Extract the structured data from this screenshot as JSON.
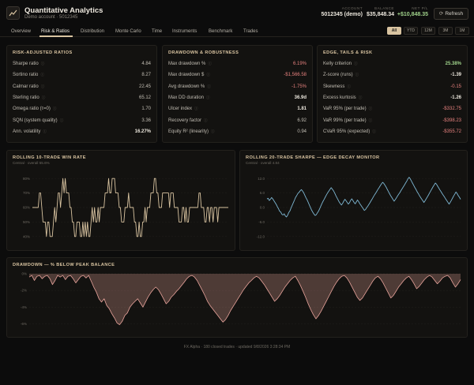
{
  "app": {
    "title": "Quantitative Analytics",
    "subtitle": "Demo account · 5012345"
  },
  "stats": [
    {
      "label": "ACCOUNT",
      "value": "5012345 (demo)",
      "tone": "plain"
    },
    {
      "label": "BALANCE",
      "value": "$35,848.34",
      "tone": "plain"
    },
    {
      "label": "NET P/L",
      "value": "+$10,848.35",
      "tone": "pos"
    }
  ],
  "refresh_label": "Refresh",
  "tabs": [
    "Overview",
    "Risk & Ratios",
    "Distribution",
    "Monte Carlo",
    "Time",
    "Instruments",
    "Benchmark",
    "Trades"
  ],
  "ranges": [
    "All",
    "YTD",
    "12M",
    "3M",
    "1M"
  ],
  "colors": {
    "accent": "#d9c4a1",
    "positive": "#9fd18a",
    "negative": "#e6817e",
    "sharpe_line": "#7fb8d4",
    "drawdown": "#e9a49c"
  },
  "panels": {
    "risk": {
      "title": "RISK-ADJUSTED RATIOS",
      "rows": [
        {
          "label": "Sharpe ratio",
          "value": "4.84",
          "tone": "plain"
        },
        {
          "label": "Sortino ratio",
          "value": "8.27",
          "tone": "plain"
        },
        {
          "label": "Calmar ratio",
          "value": "22.45",
          "tone": "plain"
        },
        {
          "label": "Sterling ratio",
          "value": "65.12",
          "tone": "plain"
        },
        {
          "label": "Omega ratio (τ=0)",
          "value": "1.70",
          "tone": "plain"
        },
        {
          "label": "SQN (system quality)",
          "value": "3.36",
          "tone": "plain"
        },
        {
          "label": "Ann. volatility",
          "value": "16.27%",
          "tone": "bold"
        }
      ]
    },
    "drawdown": {
      "title": "DRAWDOWN & ROBUSTNESS",
      "rows": [
        {
          "label": "Max drawdown %",
          "value": "6.19%",
          "tone": "neg"
        },
        {
          "label": "Max drawdown $",
          "value": "-$1,566.58",
          "tone": "neg"
        },
        {
          "label": "Avg drawdown %",
          "value": "-1.75%",
          "tone": "neg"
        },
        {
          "label": "Max DD duration",
          "value": "36.9d",
          "tone": "bold"
        },
        {
          "label": "Ulcer index",
          "value": "1.81",
          "tone": "bold"
        },
        {
          "label": "Recovery factor",
          "value": "6.92",
          "tone": "plain"
        },
        {
          "label": "Equity R² (linearity)",
          "value": "0.94",
          "tone": "plain"
        }
      ]
    },
    "edge": {
      "title": "EDGE, TAILS & RISK",
      "rows": [
        {
          "label": "Kelly criterion",
          "value": "25.38%",
          "tone": "pos"
        },
        {
          "label": "Z-score (runs)",
          "value": "-1.39",
          "tone": "bold"
        },
        {
          "label": "Skewness",
          "value": "-0.15",
          "tone": "neg"
        },
        {
          "label": "Excess kurtosis",
          "value": "-1.26",
          "tone": "bold"
        },
        {
          "label": "VaR 95% (per trade)",
          "value": "-$332.75",
          "tone": "neg"
        },
        {
          "label": "VaR 99% (per trade)",
          "value": "-$398.23",
          "tone": "neg"
        },
        {
          "label": "CVaR 95% (expected)",
          "value": "-$355.72",
          "tone": "neg"
        }
      ]
    }
  },
  "charts": {
    "winrate": {
      "title": "ROLLING 10-TRADE WIN RATE",
      "subtitle": "Central · overall 55.6%"
    },
    "sharpe": {
      "title": "ROLLING 20-TRADE SHARPE — EDGE DECAY MONITOR",
      "subtitle": "Central · overall 4.84"
    },
    "dd": {
      "title": "DRAWDOWN — % BELOW PEAK BALANCE"
    }
  },
  "chart_data": [
    {
      "type": "line",
      "name": "rolling-win-rate",
      "yticks": [
        "80%",
        "70%",
        "60%",
        "50%",
        "40%"
      ],
      "ylim": [
        35,
        85
      ],
      "values": [
        60,
        60,
        60,
        60,
        60,
        60,
        70,
        70,
        60,
        50,
        50,
        50,
        40,
        50,
        50,
        40,
        40,
        40,
        50,
        60,
        50,
        60,
        70,
        70,
        60,
        70,
        80,
        70,
        80,
        70,
        70,
        70,
        60,
        60,
        50,
        50,
        40,
        40,
        50,
        50,
        50,
        40,
        40,
        50,
        40,
        50,
        40,
        50,
        40,
        40,
        50,
        60,
        50,
        60,
        50,
        50,
        60,
        50,
        60,
        60,
        60,
        60,
        70,
        70,
        70,
        80,
        70,
        70,
        80,
        80,
        80,
        70,
        70,
        70,
        60,
        60,
        50,
        50,
        50,
        60,
        60,
        60,
        70,
        60,
        60,
        60,
        60,
        50,
        50,
        40,
        40,
        50,
        40,
        40,
        50,
        50,
        60,
        50,
        60,
        60,
        60,
        70,
        70,
        70,
        80,
        80,
        70,
        70,
        60,
        60,
        60,
        70,
        70,
        70,
        70,
        70,
        70,
        60,
        70,
        70,
        70,
        60,
        60,
        60,
        60,
        50,
        50,
        50,
        60,
        60,
        50,
        60,
        50,
        50,
        60,
        60,
        60,
        60,
        60,
        60,
        60,
        60,
        70,
        70,
        60,
        60,
        60,
        50,
        50,
        60,
        60,
        50,
        60,
        60,
        50,
        60,
        60,
        60,
        50,
        60,
        60,
        60,
        60,
        60,
        60,
        60,
        60,
        60
      ]
    },
    {
      "type": "line",
      "name": "rolling-sharpe",
      "yticks": [
        "12.0",
        "6.0",
        "0.0",
        "-6.0",
        "-12.0"
      ],
      "ylim": [
        -15,
        15
      ],
      "values": [
        3.5,
        3.8,
        2.9,
        3.4,
        4.1,
        3.6,
        2.8,
        2.1,
        1.3,
        0.4,
        -0.5,
        -1.5,
        -1.9,
        -2.8,
        -3.1,
        -2.6,
        -3.5,
        -3.9,
        -3.2,
        -2.1,
        -1.4,
        -0.2,
        0.9,
        2.0,
        3.1,
        4.2,
        5.0,
        5.8,
        6.3,
        6.9,
        7.4,
        6.8,
        6.1,
        5.1,
        4.0,
        3.2,
        2.1,
        1.0,
        -0.1,
        -1.1,
        -2.0,
        -2.7,
        -3.3,
        -3.0,
        -2.2,
        -1.5,
        -0.5,
        0.6,
        1.7,
        2.6,
        3.5,
        4.4,
        5.3,
        6.1,
        6.8,
        7.5,
        8.2,
        7.6,
        6.9,
        6.1,
        5.0,
        4.1,
        3.2,
        2.3,
        1.6,
        1.0,
        1.7,
        2.6,
        3.4,
        2.8,
        2.1,
        1.4,
        2.0,
        2.9,
        3.6,
        2.9,
        2.1,
        1.5,
        2.3,
        3.1,
        2.4,
        1.6,
        0.9,
        0.2,
        -0.5,
        -1.2,
        -0.8,
        -0.1,
        0.6,
        1.3,
        2.1,
        2.9,
        3.7,
        4.5,
        5.3,
        6.0,
        6.8,
        7.6,
        8.3,
        9.1,
        9.8,
        10.4,
        9.9,
        9.2,
        8.4,
        7.5,
        6.6,
        5.7,
        4.8,
        4.1,
        3.3,
        2.6,
        3.3,
        4.0,
        4.8,
        5.5,
        6.2,
        7.0,
        7.8,
        8.5,
        9.3,
        10.1,
        10.9,
        11.8,
        12.5,
        11.9,
        11.0,
        10.1,
        9.2,
        8.3,
        7.5,
        6.6,
        5.8,
        5.0,
        4.2,
        3.5,
        2.8,
        2.1,
        2.8,
        3.6,
        4.4,
        5.2,
        6.1,
        6.9,
        7.8,
        8.6,
        9.4,
        10.1,
        9.6,
        8.8,
        8.0,
        7.2,
        6.5,
        5.7,
        5.0,
        4.3,
        3.5,
        2.8,
        2.1,
        1.4,
        2.2,
        3.0,
        3.9,
        4.8,
        5.6,
        6.4,
        5.7,
        4.9,
        4.2,
        3.4
      ]
    },
    {
      "type": "area",
      "name": "drawdown",
      "yticks": [
        "0%",
        "-2%",
        "-4%",
        "-6%"
      ],
      "ylim": [
        -7,
        0
      ],
      "values": [
        -0.4,
        -0.2,
        -0.8,
        -0.3,
        -0.2,
        -0.6,
        -0.3,
        -0.2,
        -0.6,
        -1.3,
        -0.8,
        -0.2,
        -0.4,
        -0.2,
        -0.7,
        -0.3,
        -0.2,
        -0.6,
        -1.1,
        -0.7,
        -0.3,
        -0.2,
        -0.5,
        -0.2,
        -0.9,
        -1.6,
        -2.2,
        -3.0,
        -3.4,
        -3.0,
        -3.8,
        -4.2,
        -4.8,
        -5.3,
        -5.9,
        -6.1,
        -5.7,
        -5.0,
        -4.7,
        -4.0,
        -3.6,
        -3.3,
        -3.0,
        -3.5,
        -4.0,
        -3.4,
        -2.8,
        -2.3,
        -1.9,
        -1.6,
        -1.9,
        -2.4,
        -3.0,
        -3.6,
        -3.3,
        -2.8,
        -2.5,
        -2.1,
        -1.8,
        -1.4,
        -1.0,
        -0.6,
        -0.3,
        -0.2,
        -0.4,
        -0.8,
        -1.4,
        -2.0,
        -2.6,
        -3.3,
        -3.8,
        -4.2,
        -4.6,
        -5.0,
        -5.4,
        -5.8,
        -5.5,
        -5.0,
        -4.4,
        -3.9,
        -3.4,
        -2.9,
        -2.4,
        -1.9,
        -1.5,
        -1.1,
        -0.8,
        -0.5,
        -0.3,
        -0.5,
        -0.9,
        -1.3,
        -1.8,
        -2.3,
        -2.8,
        -3.3,
        -3.0,
        -2.6,
        -2.1,
        -1.6,
        -1.2,
        -0.8,
        -0.5,
        -0.3,
        -0.8,
        -1.4,
        -2.1,
        -2.8,
        -3.6,
        -4.3,
        -4.9,
        -5.4,
        -5.0,
        -4.5,
        -3.9,
        -3.3,
        -2.7,
        -2.1,
        -1.5,
        -1.0,
        -0.6,
        -0.3,
        -0.2,
        -0.5,
        -1.0,
        -1.6,
        -2.2,
        -2.8,
        -3.2,
        -2.9,
        -2.4,
        -1.9,
        -1.4,
        -0.9,
        -0.5,
        -0.3,
        -0.6,
        -1.1,
        -1.7,
        -2.3,
        -2.9,
        -2.6,
        -2.1,
        -1.6,
        -1.2,
        -0.8,
        -0.5,
        -0.3,
        -0.7,
        -1.2,
        -1.8,
        -1.5,
        -1.1,
        -0.7,
        -0.4,
        -0.2,
        -0.4,
        -0.8,
        -1.2,
        -0.9,
        -0.5,
        -0.3,
        -0.2,
        -0.5,
        -1.1,
        -1.6,
        -1.2,
        -0.7
      ]
    }
  ],
  "footer": "FX Alpha · 180 closed trades · updated 9/8/2026 3:28:34 PM"
}
